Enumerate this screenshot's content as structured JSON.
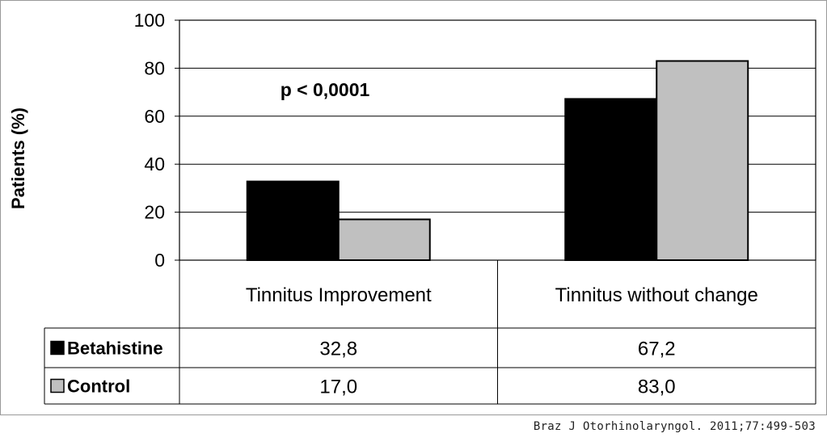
{
  "chart_data": {
    "type": "bar",
    "categories": [
      "Tinnitus Improvement",
      "Tinnitus without change"
    ],
    "series": [
      {
        "name": "Betahistine",
        "values": [
          32.8,
          67.2
        ],
        "labels": [
          "32,8",
          "67,2"
        ],
        "color": "#000000"
      },
      {
        "name": "Control",
        "values": [
          17.0,
          83.0
        ],
        "labels": [
          "17,0",
          "83,0"
        ],
        "color": "#c0c0c0"
      }
    ],
    "ylabel": "Patients (%)",
    "ylim": [
      0,
      100
    ],
    "yticks": [
      0,
      20,
      40,
      60,
      80,
      100
    ],
    "grid": true,
    "annotation": "p < 0,0001",
    "legend": "data-table"
  },
  "citation": "Braz J Otorhinolaryngol. 2011;77:499-503"
}
